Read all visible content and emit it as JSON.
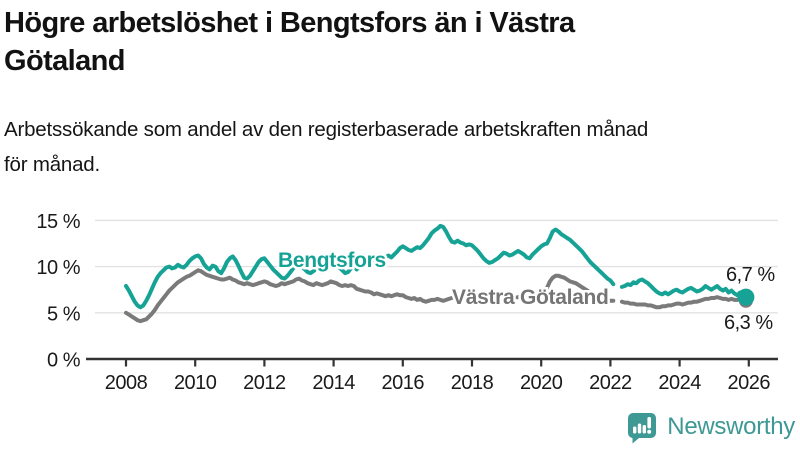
{
  "header": {
    "title_line1": "Högre arbetslöshet i Bengtsfors än i Västra",
    "title_line2": "Götaland",
    "subtitle_line1": "Arbetssökande som andel av den registerbaserade arbetskraften månad",
    "subtitle_line2": "för månad."
  },
  "footer": {
    "brand": "Newsworthy",
    "brand_color": "#3e9894",
    "logo_icon": "bar-chart-speech-bubble-icon"
  },
  "chart_data": {
    "type": "line",
    "title": "Högre arbetslöshet i Bengtsfors än i Västra Götaland",
    "subtitle": "Arbetssökande som andel av den registerbaserade arbetskraften månad för månad.",
    "unit": "%",
    "x_start": "2008-01",
    "x_interval": "monthly",
    "x_end": "2025-12",
    "data_gap_months": [
      "2022-03",
      "2022-04"
    ],
    "grid": "horizontal",
    "ylim": [
      0,
      17
    ],
    "x_ticks": [
      2008,
      2010,
      2012,
      2014,
      2016,
      2018,
      2020,
      2022,
      2024,
      2026
    ],
    "y_ticks": [
      {
        "value": 0,
        "label": "0 %"
      },
      {
        "value": 5,
        "label": "5 %"
      },
      {
        "value": 10,
        "label": "10 %"
      },
      {
        "value": 15,
        "label": "15 %"
      }
    ],
    "axis_color": "#333333",
    "grid_color": "#e2e2e2",
    "series": [
      {
        "name": "Bengtsfors",
        "color": "#16a396",
        "label_color": "#16a396",
        "end_label": "6,7 %",
        "end_value": 6.7,
        "values": [
          7.9,
          7.4,
          6.8,
          6.2,
          5.8,
          5.6,
          5.8,
          6.3,
          6.9,
          7.6,
          8.3,
          8.9,
          9.3,
          9.6,
          9.9,
          10.0,
          9.8,
          9.9,
          10.2,
          10.0,
          9.9,
          10.2,
          10.6,
          10.9,
          11.1,
          11.2,
          10.9,
          10.3,
          9.9,
          9.7,
          10.1,
          10.0,
          9.5,
          9.3,
          9.8,
          10.5,
          10.9,
          11.1,
          10.7,
          10.1,
          9.4,
          8.8,
          8.7,
          9.0,
          9.5,
          10.0,
          10.5,
          10.8,
          10.9,
          10.5,
          10.1,
          9.7,
          9.4,
          9.1,
          8.8,
          8.7,
          9.0,
          9.4,
          9.8,
          10.1,
          10.2,
          10.0,
          9.7,
          9.4,
          9.3,
          9.5,
          9.8,
          9.6,
          9.4,
          9.7,
          10.0,
          10.3,
          10.4,
          10.2,
          9.9,
          9.6,
          9.3,
          9.4,
          9.8,
          10.0,
          9.7,
          10.0,
          10.3,
          10.6,
          10.8,
          10.6,
          10.4,
          10.3,
          10.5,
          10.7,
          11.0,
          11.2,
          11.0,
          11.3,
          11.6,
          12.0,
          12.2,
          12.0,
          11.8,
          11.7,
          11.9,
          12.1,
          12.0,
          12.3,
          12.7,
          13.1,
          13.6,
          13.9,
          14.1,
          14.4,
          14.3,
          13.8,
          13.2,
          12.7,
          12.6,
          12.8,
          12.6,
          12.5,
          12.3,
          12.4,
          12.3,
          12.0,
          11.7,
          11.3,
          10.9,
          10.6,
          10.4,
          10.5,
          10.7,
          10.9,
          11.2,
          11.5,
          11.4,
          11.2,
          11.3,
          11.5,
          11.7,
          11.5,
          11.3,
          11.0,
          10.9,
          11.3,
          11.6,
          11.9,
          12.2,
          12.4,
          12.5,
          13.1,
          13.8,
          14.0,
          13.8,
          13.5,
          13.3,
          13.1,
          12.9,
          12.6,
          12.3,
          12.0,
          11.7,
          11.3,
          10.9,
          10.5,
          10.2,
          9.9,
          9.6,
          9.3,
          9.0,
          8.7,
          8.5,
          8.1,
          null,
          null,
          7.8,
          7.9,
          8.1,
          8.0,
          8.3,
          8.2,
          8.5,
          8.6,
          8.4,
          8.2,
          7.9,
          7.6,
          7.3,
          7.1,
          7.0,
          7.2,
          7.0,
          7.2,
          7.4,
          7.5,
          7.3,
          7.2,
          7.4,
          7.6,
          7.7,
          7.5,
          7.3,
          7.4,
          7.6,
          7.9,
          7.7,
          7.5,
          7.7,
          7.9,
          7.6,
          7.4,
          7.6,
          7.2,
          7.4,
          7.1,
          6.9,
          7.2,
          7.0,
          6.7
        ]
      },
      {
        "name": "Västra Götaland",
        "color": "#7a7a7a",
        "label_color": "#757575",
        "end_label": "6,3 %",
        "end_value": 6.3,
        "values": [
          5.0,
          4.8,
          4.6,
          4.4,
          4.2,
          4.1,
          4.2,
          4.3,
          4.6,
          4.9,
          5.3,
          5.8,
          6.2,
          6.6,
          7.0,
          7.4,
          7.7,
          8.0,
          8.3,
          8.5,
          8.7,
          8.9,
          9.0,
          9.2,
          9.4,
          9.6,
          9.5,
          9.3,
          9.1,
          9.0,
          8.9,
          8.8,
          8.7,
          8.6,
          8.6,
          8.7,
          8.8,
          8.6,
          8.5,
          8.3,
          8.2,
          8.1,
          8.2,
          8.1,
          8.0,
          8.1,
          8.2,
          8.3,
          8.4,
          8.3,
          8.1,
          8.0,
          7.9,
          8.0,
          8.2,
          8.1,
          8.2,
          8.3,
          8.4,
          8.6,
          8.7,
          8.5,
          8.4,
          8.2,
          8.1,
          8.0,
          8.2,
          8.1,
          8.0,
          8.1,
          8.2,
          8.4,
          8.3,
          8.2,
          8.0,
          7.9,
          8.0,
          7.9,
          8.0,
          7.9,
          7.6,
          7.5,
          7.4,
          7.3,
          7.3,
          7.2,
          7.0,
          7.1,
          7.0,
          6.9,
          6.8,
          6.9,
          6.8,
          6.9,
          7.0,
          6.9,
          6.9,
          6.7,
          6.6,
          6.5,
          6.6,
          6.4,
          6.5,
          6.3,
          6.2,
          6.3,
          6.4,
          6.4,
          6.5,
          6.4,
          6.3,
          6.4,
          6.5,
          6.6,
          6.7,
          6.8,
          6.8,
          6.9,
          6.9,
          7.0,
          7.0,
          6.9,
          6.8,
          6.7,
          6.6,
          6.6,
          6.7,
          6.6,
          6.5,
          6.6,
          6.6,
          6.7,
          6.8,
          6.8,
          6.7,
          6.6,
          6.7,
          6.8,
          6.9,
          6.9,
          7.0,
          7.0,
          7.1,
          7.2,
          7.3,
          7.4,
          7.7,
          8.4,
          8.8,
          9.0,
          9.0,
          8.9,
          8.8,
          8.6,
          8.4,
          8.3,
          8.2,
          8.0,
          7.8,
          7.6,
          7.4,
          7.2,
          7.0,
          6.9,
          6.7,
          6.6,
          6.5,
          6.4,
          6.3,
          6.3,
          null,
          null,
          6.2,
          6.1,
          6.1,
          6.0,
          6.0,
          5.9,
          5.9,
          5.9,
          5.9,
          5.8,
          5.8,
          5.7,
          5.6,
          5.6,
          5.7,
          5.7,
          5.8,
          5.8,
          5.9,
          6.0,
          6.0,
          5.9,
          6.0,
          6.1,
          6.1,
          6.2,
          6.2,
          6.3,
          6.4,
          6.5,
          6.5,
          6.6,
          6.6,
          6.7,
          6.6,
          6.5,
          6.5,
          6.4,
          6.5,
          6.4,
          6.4,
          6.5,
          6.4,
          6.3
        ]
      }
    ]
  }
}
